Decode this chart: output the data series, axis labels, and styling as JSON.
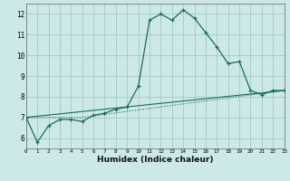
{
  "xlabel": "Humidex (Indice chaleur)",
  "bg_color": "#cce8e8",
  "grid_color": "#aacccc",
  "line_color": "#1a6b5e",
  "xlim": [
    0,
    23
  ],
  "ylim": [
    5.5,
    12.5
  ],
  "xticks": [
    0,
    1,
    2,
    3,
    4,
    5,
    6,
    7,
    8,
    9,
    10,
    11,
    12,
    13,
    14,
    15,
    16,
    17,
    18,
    19,
    20,
    21,
    22,
    23
  ],
  "yticks": [
    6,
    7,
    8,
    9,
    10,
    11,
    12
  ],
  "series1_x": [
    0,
    1,
    2,
    3,
    4,
    5,
    6,
    7,
    8,
    9,
    10,
    11,
    12,
    13,
    14,
    15,
    16,
    17,
    18,
    19,
    20,
    21,
    22,
    23
  ],
  "series1_y": [
    7.0,
    5.8,
    6.6,
    6.9,
    6.9,
    6.8,
    7.1,
    7.2,
    7.4,
    7.5,
    8.5,
    11.7,
    12.0,
    11.7,
    12.2,
    11.8,
    11.1,
    10.4,
    9.6,
    9.7,
    8.3,
    8.1,
    8.3,
    8.3
  ],
  "series2_x": [
    0,
    23
  ],
  "series2_y": [
    7.0,
    8.3
  ],
  "series3_x": [
    0,
    5,
    23
  ],
  "series3_y": [
    7.0,
    7.0,
    8.3
  ]
}
